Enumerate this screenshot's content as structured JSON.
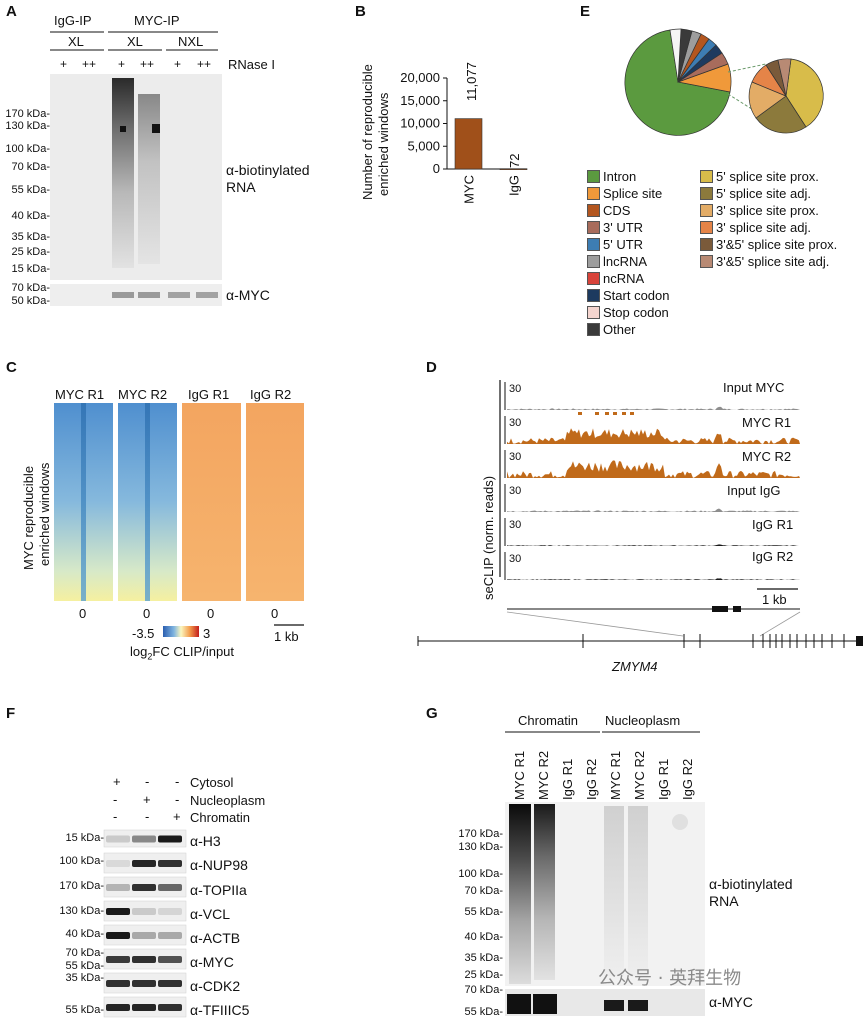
{
  "panels": {
    "A": {
      "label": "A",
      "groups": [
        "IgG-IP",
        "MYC-IP"
      ],
      "subgroups": [
        "XL",
        "XL",
        "NXL"
      ],
      "rnase": [
        "+",
        "++",
        "+",
        "++",
        "+",
        "++"
      ],
      "rnase_label": "RNase I",
      "markers_top": [
        "170 kDa-",
        "130 kDa-",
        "100 kDa-",
        "70 kDa-",
        "55 kDa-",
        "40 kDa-",
        "35 kDa-",
        "25 kDa-",
        "15 kDa-"
      ],
      "markers_bottom": [
        "70 kDa-",
        "50 kDa-"
      ],
      "probe_top": "α-biotinylated",
      "probe_top2": "RNA",
      "probe_bottom": "α-MYC"
    },
    "B": {
      "label": "B",
      "ylabel1": "Number of reproducible",
      "ylabel2": "enriched windows",
      "bar_labels": [
        "11,077",
        "72"
      ]
    },
    "C": {
      "label": "C",
      "cols": [
        "MYC R1",
        "MYC R2",
        "IgG R1",
        "IgG R2"
      ],
      "ylabel1": "MYC reproducible",
      "ylabel2": "enriched windows",
      "zero": "0",
      "scale_min": "-3.5",
      "scale_max": "3",
      "scale_title_a": "log",
      "scale_title_sub": "2",
      "scale_title_b": "FC CLIP/input",
      "scalebar": "1 kb"
    },
    "D": {
      "label": "D",
      "ylabel": "seCLIP (norm. reads)",
      "tracks": [
        "Input MYC",
        "MYC R1",
        "MYC R2",
        "Input IgG",
        "IgG R1",
        "IgG R2"
      ],
      "tick": "30",
      "scalebar": "1 kb",
      "gene": "ZMYM4"
    },
    "E": {
      "label": "E",
      "legend_left": [
        "Intron",
        "Splice site",
        "CDS",
        "3' UTR",
        "5' UTR",
        "lncRNA",
        "ncRNA",
        "Start codon",
        "Stop codon",
        "Other"
      ],
      "legend_right": [
        "5' splice site prox.",
        "5' splice site adj.",
        "3' splice site prox.",
        "3' splice site adj.",
        "3'&5' splice site prox.",
        "3'&5' splice site adj."
      ],
      "colors_left": [
        "#5b9a3f",
        "#f0993a",
        "#b3561f",
        "#a86c5c",
        "#3d7db3",
        "#9d9d9d",
        "#d8433a",
        "#1d3a5f",
        "#f5d5cf",
        "#3a3a3a"
      ],
      "colors_right": [
        "#d8bc4a",
        "#8c7a3c",
        "#e3ac66",
        "#e58448",
        "#7a5a3a",
        "#b88a74"
      ]
    },
    "F": {
      "label": "F",
      "fractions": [
        "Cytosol",
        "Nucleoplasm",
        "Chromatin"
      ],
      "signs": [
        [
          "+",
          "-",
          "-"
        ],
        [
          "-",
          "+",
          "-"
        ],
        [
          "-",
          "-",
          "+"
        ]
      ],
      "markers": [
        "15 kDa-",
        "100 kDa-",
        "170 kDa-",
        "130 kDa-",
        "40 kDa-",
        "70 kDa-",
        "55 kDa-",
        "35 kDa-",
        "55 kDa-"
      ],
      "probes": [
        "α-H3",
        "α-NUP98",
        "α-TOPIIa",
        "α-VCL",
        "α-ACTB",
        "α-MYC",
        "α-CDK2",
        "α-TFIIIC5"
      ]
    },
    "G": {
      "label": "G",
      "groups": [
        "Chromatin",
        "Nucleoplasm"
      ],
      "lanes": [
        "MYC R1",
        "MYC R2",
        "IgG R1",
        "IgG R2",
        "MYC R1",
        "MYC R2",
        "IgG R1",
        "IgG R2"
      ],
      "markers_top": [
        "170 kDa-",
        "130 kDa-",
        "100 kDa-",
        "70 kDa-",
        "55 kDa-",
        "40 kDa-",
        "35 kDa-",
        "25 kDa-"
      ],
      "markers_bottom": [
        "70 kDa-",
        "55 kDa-"
      ],
      "probe_top": "α-biotinylated",
      "probe_top2": "RNA",
      "probe_bottom": "α-MYC"
    }
  },
  "watermark": "公众号 · 英拜生物",
  "chart_data": {
    "type": "bar",
    "categories": [
      "MYC",
      "IgG"
    ],
    "values": [
      11077,
      72
    ],
    "ylabel": "Number of reproducible enriched windows",
    "yticks": [
      0,
      5000,
      10000,
      15000,
      20000
    ],
    "ytick_labels": [
      "0",
      "5,000",
      "10,000",
      "15,000",
      "20,000"
    ],
    "ylim": [
      0,
      20000
    ],
    "bar_color": "#a0501a"
  }
}
